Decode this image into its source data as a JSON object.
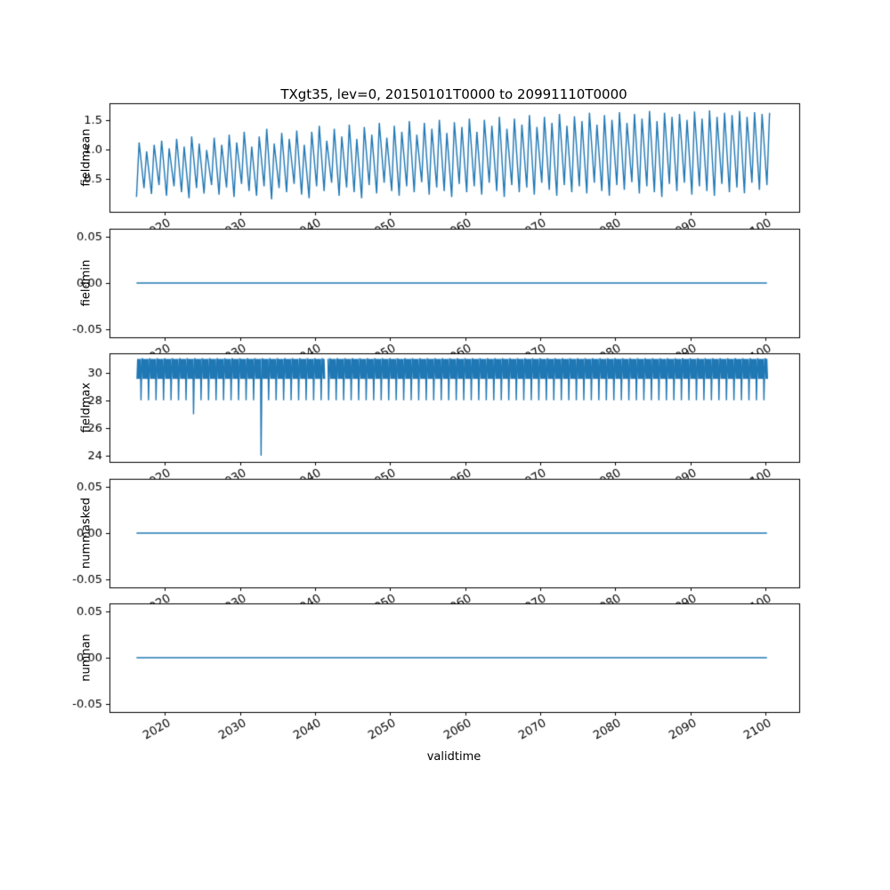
{
  "figure": {
    "title": "TXgt35, lev=0, 20150101T0000 to 20991110T0000",
    "xlabel": "validtime",
    "line_color": "#1f77b4",
    "axis_color": "#000000",
    "background": "#ffffff"
  },
  "xaxis": {
    "label": "validtime",
    "xlim": [
      2012.6,
      2104.5
    ],
    "ticks": [
      2020,
      2030,
      2040,
      2050,
      2060,
      2070,
      2080,
      2090,
      2100
    ],
    "tick_rotation_deg": 30
  },
  "chart_data": [
    {
      "name": "fieldmean",
      "ylabel": "fieldmean",
      "type": "line",
      "render": "oscillation",
      "ylim": [
        -0.05,
        1.78
      ],
      "yticks": [
        "0.5",
        "1.0",
        "1.5"
      ],
      "ytick_values": [
        0.5,
        1.0,
        1.5
      ],
      "x_years_start": 2016,
      "peaks": [
        1.12,
        0.97,
        1.08,
        1.15,
        1.02,
        1.18,
        1.05,
        1.22,
        1.1,
        0.99,
        1.2,
        1.08,
        1.25,
        1.12,
        1.3,
        1.05,
        1.22,
        1.35,
        1.1,
        1.28,
        1.18,
        1.32,
        1.08,
        1.3,
        1.4,
        1.15,
        1.35,
        1.22,
        1.42,
        1.18,
        1.38,
        1.25,
        1.45,
        1.2,
        1.4,
        1.3,
        1.48,
        1.25,
        1.45,
        1.35,
        1.5,
        1.28,
        1.46,
        1.38,
        1.52,
        1.3,
        1.5,
        1.4,
        1.55,
        1.35,
        1.52,
        1.42,
        1.58,
        1.38,
        1.55,
        1.45,
        1.6,
        1.4,
        1.56,
        1.48,
        1.62,
        1.42,
        1.58,
        1.5,
        1.63,
        1.45,
        1.6,
        1.52,
        1.65,
        1.48,
        1.62,
        1.55,
        1.6,
        1.5,
        1.64,
        1.52,
        1.66,
        1.55,
        1.62,
        1.58,
        1.65,
        1.55,
        1.63,
        1.6,
        1.62
      ],
      "troughs": [
        0.2,
        0.35,
        0.25,
        0.4,
        0.22,
        0.38,
        0.28,
        0.18,
        0.35,
        0.26,
        0.4,
        0.24,
        0.36,
        0.2,
        0.42,
        0.3,
        0.22,
        0.38,
        0.16,
        0.35,
        0.28,
        0.42,
        0.24,
        0.18,
        0.38,
        0.3,
        0.44,
        0.22,
        0.36,
        0.28,
        0.18,
        0.4,
        0.26,
        0.44,
        0.3,
        0.22,
        0.38,
        0.28,
        0.45,
        0.24,
        0.36,
        0.3,
        0.2,
        0.42,
        0.28,
        0.38,
        0.24,
        0.44,
        0.3,
        0.2,
        0.4,
        0.28,
        0.36,
        0.24,
        0.44,
        0.32,
        0.22,
        0.4,
        0.28,
        0.38,
        0.26,
        0.44,
        0.3,
        0.22,
        0.4,
        0.32,
        0.45,
        0.26,
        0.38,
        0.28,
        0.2,
        0.42,
        0.3,
        0.44,
        0.24,
        0.38,
        0.3,
        0.22,
        0.42,
        0.28,
        0.36,
        0.26,
        0.44,
        0.32,
        0.4
      ]
    },
    {
      "name": "fieldmin",
      "ylabel": "fieldmin",
      "type": "line",
      "render": "flat",
      "ylim": [
        -0.059,
        0.059
      ],
      "yticks": [
        "-0.05",
        "0.00",
        "0.05"
      ],
      "ytick_values": [
        -0.05,
        0.0,
        0.05
      ],
      "x": [
        2016.2,
        2100.2
      ],
      "y": [
        0,
        0
      ]
    },
    {
      "name": "fieldmax",
      "ylabel": "fieldmax",
      "type": "line",
      "render": "band",
      "ylim": [
        23.55,
        31.4
      ],
      "yticks": [
        "24",
        "26",
        "28",
        "30"
      ],
      "ytick_values": [
        24,
        26,
        28,
        30
      ],
      "x_start": 2016.2,
      "x_end": 2100.3,
      "band_top": 31.0,
      "band_bottom": 29.55,
      "tooth_y": 28.0,
      "spikes": [
        {
          "year": 2023,
          "y": 27.0
        },
        {
          "year": 2032,
          "y": 24.0
        }
      ],
      "gap": [
        2041.3,
        2041.65
      ]
    },
    {
      "name": "nummasked",
      "ylabel": "nummasked",
      "type": "line",
      "render": "flat",
      "ylim": [
        -0.059,
        0.059
      ],
      "yticks": [
        "-0.05",
        "0.00",
        "0.05"
      ],
      "ytick_values": [
        -0.05,
        0.0,
        0.05
      ],
      "x": [
        2016.2,
        2100.2
      ],
      "y": [
        0,
        0
      ]
    },
    {
      "name": "numnan",
      "ylabel": "numnan",
      "type": "line",
      "render": "flat",
      "ylim": [
        -0.059,
        0.059
      ],
      "yticks": [
        "-0.05",
        "0.00",
        "0.05"
      ],
      "ytick_values": [
        -0.05,
        0.0,
        0.05
      ],
      "x": [
        2016.2,
        2100.2
      ],
      "y": [
        0,
        0
      ]
    }
  ]
}
